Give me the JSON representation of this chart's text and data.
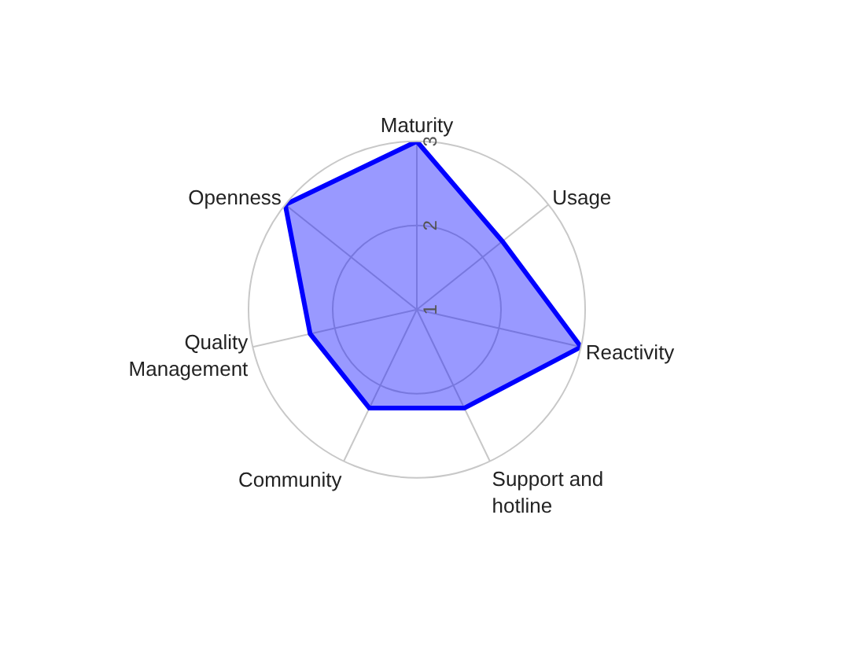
{
  "chart_data": {
    "type": "radar",
    "categories": [
      "Maturity",
      "Usage",
      "Reactivity",
      "Support and\nhotline",
      "Community",
      "Quality\nManagement",
      "Openness"
    ],
    "series": [
      {
        "color": "#0000ff",
        "values": [
          3,
          2.3,
          3,
          2.3,
          2.3,
          2.3,
          3
        ]
      }
    ],
    "ylim": [
      1,
      3
    ],
    "yticks": [
      1,
      2,
      3
    ],
    "grid": true
  }
}
